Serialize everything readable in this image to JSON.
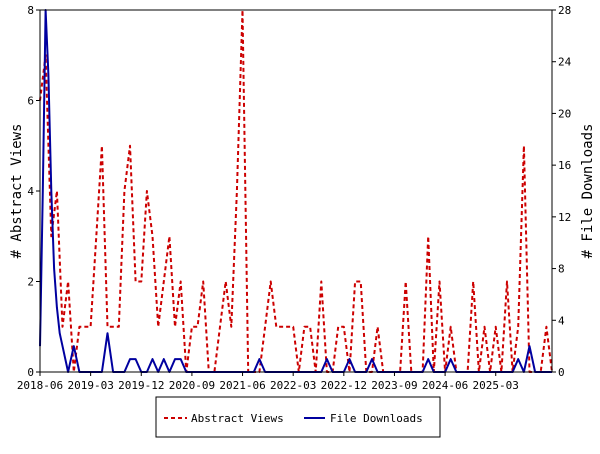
{
  "chart_data": {
    "type": "line",
    "title": "",
    "ylabel_left": "# Abstract Views",
    "ylabel_right": "# File Downloads",
    "x_tick_labels": [
      "2018-06",
      "2019-03",
      "2019-12",
      "2020-09",
      "2021-06",
      "2022-03",
      "2022-12",
      "2023-09",
      "2024-06",
      "2025-03"
    ],
    "x_months_range": [
      0,
      91
    ],
    "x_tick_months": [
      0,
      9,
      18,
      27,
      36,
      45,
      54,
      63,
      72,
      81
    ],
    "ylim_left": [
      0,
      8
    ],
    "ylim_right": [
      0,
      28
    ],
    "yticks_left": [
      0,
      2,
      4,
      6,
      8
    ],
    "yticks_right": [
      0,
      4,
      8,
      12,
      16,
      20,
      24,
      28
    ],
    "legend_position": "bottom",
    "series": [
      {
        "name": "Abstract Views",
        "axis": "left",
        "color": "#cc0000",
        "dash": "dashed",
        "x": [
          0,
          1,
          2,
          3,
          4,
          5,
          6,
          7,
          8,
          9,
          10,
          11,
          12,
          13,
          14,
          15,
          16,
          17,
          18,
          19,
          20,
          21,
          22,
          23,
          24,
          25,
          26,
          27,
          28,
          29,
          30,
          31,
          32,
          33,
          34,
          35,
          36,
          37,
          38,
          39,
          40,
          41,
          42,
          43,
          44,
          45,
          46,
          47,
          48,
          49,
          50,
          51,
          52,
          53,
          54,
          55,
          56,
          57,
          58,
          59,
          60,
          61,
          62,
          63,
          64,
          65,
          66,
          67,
          68,
          69,
          70,
          71,
          72,
          73,
          74,
          75,
          76,
          77,
          78,
          79,
          80,
          81,
          82,
          83,
          84,
          85,
          86,
          87,
          88,
          89,
          90,
          91
        ],
        "values": [
          6,
          7,
          3,
          4,
          1,
          2,
          0,
          1,
          1,
          1,
          3,
          5,
          1,
          1,
          1,
          4,
          5,
          2,
          2,
          4,
          3,
          1,
          2,
          3,
          1,
          2,
          0,
          1,
          1,
          2,
          0,
          0,
          1,
          2,
          1,
          4,
          8,
          0,
          0,
          0,
          1,
          2,
          1,
          1,
          1,
          1,
          0,
          1,
          1,
          0,
          2,
          0,
          0,
          1,
          1,
          0,
          2,
          2,
          0,
          0,
          1,
          0,
          0,
          0,
          0,
          2,
          0,
          0,
          0,
          3,
          0,
          2,
          0,
          1,
          0,
          0,
          0,
          2,
          0,
          1,
          0,
          1,
          0,
          2,
          0,
          1,
          5,
          0,
          0,
          0,
          1,
          0
        ]
      },
      {
        "name": "File Downloads",
        "axis": "right",
        "color": "#00009f",
        "dash": "solid",
        "x": [
          0,
          0.5,
          1,
          1.5,
          2,
          2.5,
          3,
          3.5,
          4,
          5,
          6,
          7,
          8,
          9,
          10,
          11,
          12,
          13,
          14,
          15,
          16,
          17,
          18,
          19,
          20,
          21,
          22,
          23,
          24,
          25,
          26,
          27,
          28,
          29,
          30,
          31,
          32,
          33,
          34,
          35,
          36,
          37,
          38,
          39,
          40,
          41,
          42,
          43,
          44,
          45,
          46,
          47,
          48,
          49,
          50,
          51,
          52,
          53,
          54,
          55,
          56,
          57,
          58,
          59,
          60,
          61,
          62,
          63,
          64,
          65,
          66,
          67,
          68,
          69,
          70,
          71,
          72,
          73,
          74,
          75,
          76,
          77,
          78,
          79,
          80,
          81,
          82,
          83,
          84,
          85,
          86,
          87,
          88,
          89,
          90,
          91
        ],
        "values": [
          2,
          14,
          28,
          23,
          14,
          8,
          5,
          3,
          2,
          0,
          2,
          0,
          0,
          0,
          0,
          0,
          3,
          0,
          0,
          0,
          1,
          1,
          0,
          0,
          1,
          0,
          1,
          0,
          1,
          1,
          0,
          0,
          0,
          0,
          0,
          0,
          0,
          0,
          0,
          0,
          0,
          0,
          0,
          1,
          0,
          0,
          0,
          0,
          0,
          0,
          0,
          0,
          0,
          0,
          0,
          1,
          0,
          0,
          0,
          1,
          0,
          0,
          0,
          1,
          0,
          0,
          0,
          0,
          0,
          0,
          0,
          0,
          0,
          1,
          0,
          0,
          0,
          1,
          0,
          0,
          0,
          0,
          0,
          0,
          0,
          0,
          0,
          0,
          0,
          1,
          0,
          2,
          0,
          0,
          0,
          0
        ]
      }
    ]
  }
}
